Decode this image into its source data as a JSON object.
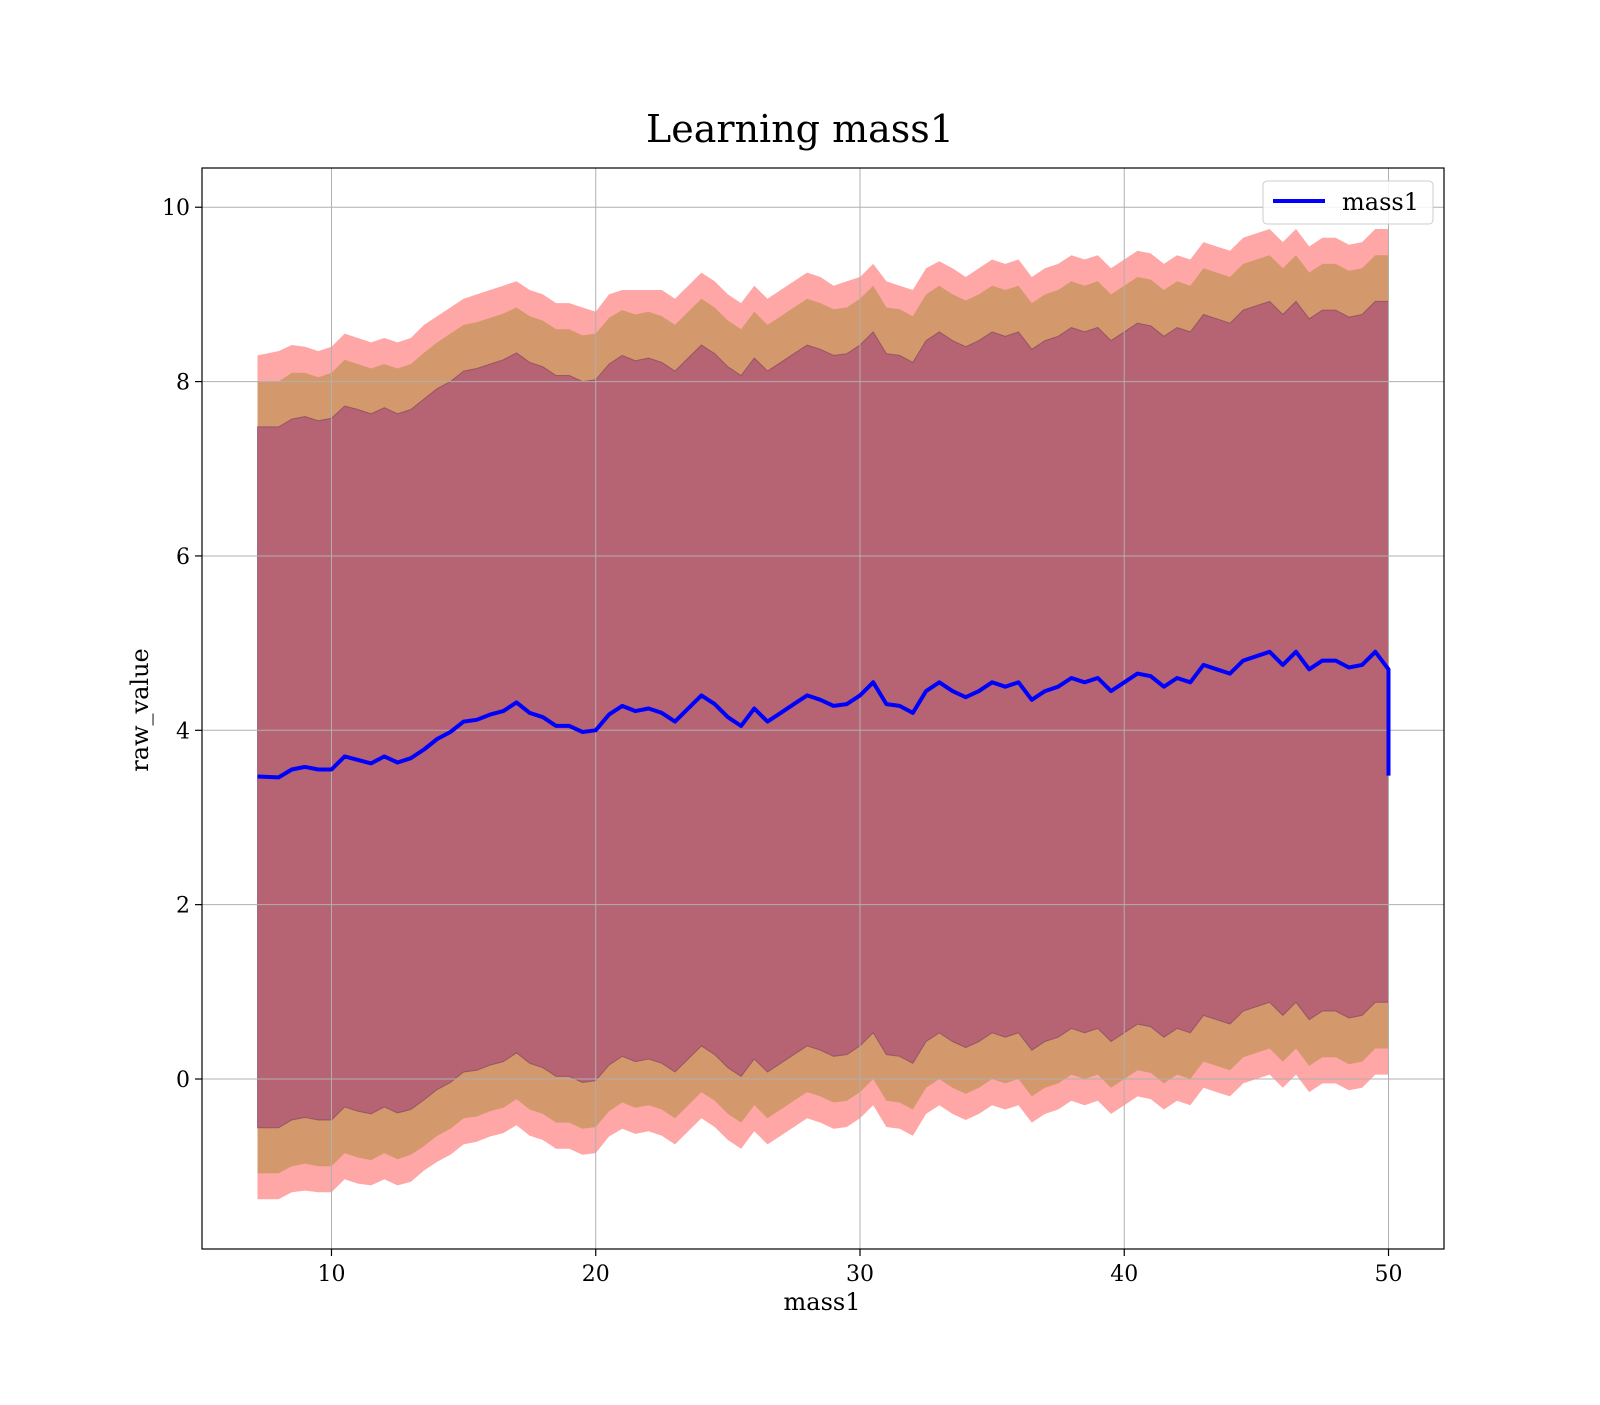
{
  "chart_data": {
    "type": "area",
    "title": "Learning mass1",
    "xlabel": "mass1",
    "ylabel": "raw_value",
    "xlim": [
      5.1,
      52.1
    ],
    "ylim": [
      -1.95,
      10.45
    ],
    "x_ticks": [
      10,
      20,
      30,
      40,
      50
    ],
    "y_ticks": [
      0,
      2,
      4,
      6,
      8,
      10
    ],
    "grid": true,
    "legend": {
      "position": "upper right",
      "entries": [
        "mass1"
      ]
    },
    "colors": {
      "line": "#0000ff",
      "band_outer": "#ff000059",
      "band_middle": "#80800059",
      "band_inner": "#80008059",
      "band_inner_edge": "#7a3d5e"
    },
    "series": [
      {
        "name": "mass1",
        "x": [
          7.2,
          8.0,
          8.5,
          9.0,
          9.5,
          10.0,
          10.5,
          11.0,
          11.5,
          12.0,
          12.5,
          13.0,
          13.5,
          14.0,
          14.5,
          15.0,
          15.5,
          16.0,
          16.5,
          17.0,
          17.5,
          18.0,
          18.5,
          19.0,
          19.5,
          20.0,
          20.5,
          21.0,
          21.5,
          22.0,
          22.5,
          23.0,
          23.5,
          24.0,
          24.5,
          25.0,
          25.5,
          26.0,
          26.5,
          27.0,
          27.5,
          28.0,
          28.5,
          29.0,
          29.5,
          30.0,
          30.5,
          31.0,
          31.5,
          32.0,
          32.5,
          33.0,
          33.5,
          34.0,
          34.5,
          35.0,
          35.5,
          36.0,
          36.5,
          37.0,
          37.5,
          38.0,
          38.5,
          39.0,
          39.5,
          40.0,
          40.5,
          41.0,
          41.5,
          42.0,
          42.5,
          43.0,
          43.5,
          44.0,
          44.5,
          45.0,
          45.5,
          46.0,
          46.5,
          47.0,
          47.5,
          48.0,
          48.5,
          49.0,
          49.5,
          50.0
        ],
        "values": [
          3.47,
          3.46,
          3.55,
          3.58,
          3.55,
          3.55,
          3.7,
          3.66,
          3.62,
          3.7,
          3.63,
          3.68,
          3.78,
          3.9,
          3.98,
          4.1,
          4.12,
          4.18,
          4.22,
          4.32,
          4.2,
          4.15,
          4.05,
          4.05,
          3.98,
          4.0,
          4.18,
          4.28,
          4.22,
          4.25,
          4.2,
          4.1,
          4.25,
          4.4,
          4.3,
          4.15,
          4.05,
          4.25,
          4.1,
          4.2,
          4.3,
          4.4,
          4.35,
          4.28,
          4.3,
          4.4,
          4.55,
          4.3,
          4.28,
          4.2,
          4.45,
          4.55,
          4.45,
          4.38,
          4.45,
          4.55,
          4.5,
          4.55,
          4.35,
          4.45,
          4.5,
          4.6,
          4.55,
          4.6,
          4.45,
          4.55,
          4.65,
          4.62,
          4.5,
          4.6,
          4.55,
          4.75,
          4.7,
          4.65,
          4.8,
          4.85,
          4.9,
          4.75,
          4.9,
          4.7,
          4.8,
          4.8,
          4.72,
          4.75,
          4.9,
          4.7
        ],
        "end_drop_to": 3.48
      }
    ],
    "bands": [
      {
        "layer": "outer",
        "upper": [
          8.3,
          8.35,
          8.42,
          8.4,
          8.35,
          8.4,
          8.55,
          8.5,
          8.45,
          8.5,
          8.45,
          8.5,
          8.65,
          8.75,
          8.85,
          8.95,
          9.0,
          9.05,
          9.1,
          9.15,
          9.05,
          9.0,
          8.9,
          8.9,
          8.85,
          8.8,
          9.0,
          9.05,
          9.05,
          9.05,
          9.05,
          8.95,
          9.1,
          9.25,
          9.15,
          9.0,
          8.9,
          9.1,
          8.95,
          9.05,
          9.15,
          9.25,
          9.2,
          9.1,
          9.15,
          9.2,
          9.35,
          9.15,
          9.1,
          9.05,
          9.3,
          9.38,
          9.3,
          9.2,
          9.3,
          9.4,
          9.35,
          9.4,
          9.2,
          9.3,
          9.35,
          9.45,
          9.4,
          9.45,
          9.3,
          9.4,
          9.5,
          9.47,
          9.35,
          9.45,
          9.4,
          9.6,
          9.55,
          9.5,
          9.65,
          9.7,
          9.75,
          9.6,
          9.75,
          9.55,
          9.65,
          9.65,
          9.57,
          9.6,
          9.75,
          9.75
        ],
        "lower": [
          -1.38,
          -1.38,
          -1.3,
          -1.28,
          -1.3,
          -1.3,
          -1.15,
          -1.2,
          -1.22,
          -1.15,
          -1.22,
          -1.18,
          -1.05,
          -0.95,
          -0.87,
          -0.75,
          -0.72,
          -0.66,
          -0.62,
          -0.53,
          -0.65,
          -0.7,
          -0.8,
          -0.8,
          -0.87,
          -0.85,
          -0.66,
          -0.57,
          -0.63,
          -0.6,
          -0.65,
          -0.75,
          -0.6,
          -0.45,
          -0.55,
          -0.7,
          -0.8,
          -0.6,
          -0.75,
          -0.65,
          -0.55,
          -0.45,
          -0.5,
          -0.57,
          -0.55,
          -0.45,
          -0.3,
          -0.55,
          -0.57,
          -0.65,
          -0.4,
          -0.3,
          -0.4,
          -0.47,
          -0.4,
          -0.3,
          -0.35,
          -0.3,
          -0.5,
          -0.4,
          -0.35,
          -0.25,
          -0.3,
          -0.25,
          -0.4,
          -0.3,
          -0.2,
          -0.23,
          -0.35,
          -0.25,
          -0.3,
          -0.1,
          -0.15,
          -0.2,
          -0.05,
          0.0,
          0.05,
          -0.1,
          0.05,
          -0.15,
          -0.05,
          -0.05,
          -0.13,
          -0.1,
          0.05,
          0.05
        ]
      },
      {
        "layer": "middle",
        "upper": [
          8.0,
          8.0,
          8.1,
          8.1,
          8.05,
          8.1,
          8.25,
          8.2,
          8.15,
          8.2,
          8.15,
          8.2,
          8.33,
          8.45,
          8.55,
          8.65,
          8.68,
          8.73,
          8.78,
          8.85,
          8.75,
          8.7,
          8.6,
          8.6,
          8.53,
          8.55,
          8.73,
          8.82,
          8.77,
          8.8,
          8.75,
          8.65,
          8.8,
          8.95,
          8.85,
          8.7,
          8.6,
          8.8,
          8.65,
          8.75,
          8.85,
          8.95,
          8.9,
          8.83,
          8.85,
          8.95,
          9.1,
          8.85,
          8.83,
          8.75,
          9.0,
          9.1,
          9.0,
          8.93,
          9.0,
          9.1,
          9.05,
          9.1,
          8.9,
          9.0,
          9.05,
          9.15,
          9.1,
          9.15,
          9.0,
          9.1,
          9.2,
          9.17,
          9.05,
          9.15,
          9.1,
          9.3,
          9.25,
          9.2,
          9.35,
          9.4,
          9.45,
          9.3,
          9.45,
          9.25,
          9.35,
          9.35,
          9.27,
          9.3,
          9.45,
          9.45
        ],
        "lower": [
          -1.08,
          -1.08,
          -1.0,
          -0.97,
          -1.0,
          -1.0,
          -0.85,
          -0.9,
          -0.93,
          -0.85,
          -0.92,
          -0.87,
          -0.77,
          -0.65,
          -0.57,
          -0.45,
          -0.43,
          -0.37,
          -0.33,
          -0.23,
          -0.35,
          -0.4,
          -0.5,
          -0.5,
          -0.57,
          -0.55,
          -0.37,
          -0.27,
          -0.33,
          -0.3,
          -0.35,
          -0.45,
          -0.3,
          -0.15,
          -0.25,
          -0.4,
          -0.5,
          -0.3,
          -0.45,
          -0.35,
          -0.25,
          -0.15,
          -0.2,
          -0.27,
          -0.25,
          -0.15,
          0.0,
          -0.25,
          -0.27,
          -0.35,
          -0.1,
          0.0,
          -0.1,
          -0.17,
          -0.1,
          0.0,
          -0.05,
          0.0,
          -0.2,
          -0.1,
          -0.05,
          0.05,
          0.0,
          0.05,
          -0.1,
          0.0,
          0.1,
          0.07,
          -0.05,
          0.05,
          0.0,
          0.2,
          0.15,
          0.1,
          0.25,
          0.3,
          0.35,
          0.2,
          0.35,
          0.15,
          0.25,
          0.25,
          0.17,
          0.2,
          0.35,
          0.35
        ]
      },
      {
        "layer": "inner",
        "upper": [
          7.48,
          7.48,
          7.57,
          7.6,
          7.55,
          7.58,
          7.72,
          7.68,
          7.63,
          7.7,
          7.63,
          7.68,
          7.8,
          7.92,
          8.0,
          8.12,
          8.15,
          8.2,
          8.25,
          8.33,
          8.22,
          8.17,
          8.07,
          8.07,
          8.0,
          8.02,
          8.2,
          8.3,
          8.24,
          8.27,
          8.22,
          8.12,
          8.27,
          8.42,
          8.32,
          8.17,
          8.07,
          8.27,
          8.12,
          8.22,
          8.32,
          8.42,
          8.37,
          8.3,
          8.32,
          8.42,
          8.57,
          8.32,
          8.3,
          8.22,
          8.47,
          8.57,
          8.47,
          8.4,
          8.47,
          8.57,
          8.52,
          8.57,
          8.37,
          8.47,
          8.52,
          8.62,
          8.57,
          8.62,
          8.47,
          8.57,
          8.67,
          8.64,
          8.52,
          8.62,
          8.57,
          8.77,
          8.72,
          8.67,
          8.82,
          8.87,
          8.92,
          8.77,
          8.92,
          8.72,
          8.82,
          8.82,
          8.74,
          8.77,
          8.92,
          8.92
        ],
        "lower": [
          -0.56,
          -0.56,
          -0.47,
          -0.44,
          -0.47,
          -0.47,
          -0.32,
          -0.37,
          -0.4,
          -0.32,
          -0.39,
          -0.35,
          -0.24,
          -0.12,
          -0.04,
          0.08,
          0.1,
          0.16,
          0.2,
          0.3,
          0.18,
          0.13,
          0.03,
          0.03,
          -0.04,
          -0.02,
          0.16,
          0.26,
          0.2,
          0.23,
          0.18,
          0.08,
          0.23,
          0.38,
          0.28,
          0.13,
          0.03,
          0.23,
          0.08,
          0.18,
          0.28,
          0.38,
          0.33,
          0.26,
          0.28,
          0.38,
          0.53,
          0.28,
          0.26,
          0.18,
          0.43,
          0.53,
          0.43,
          0.36,
          0.43,
          0.53,
          0.48,
          0.53,
          0.33,
          0.43,
          0.48,
          0.58,
          0.53,
          0.58,
          0.43,
          0.53,
          0.63,
          0.6,
          0.48,
          0.58,
          0.53,
          0.73,
          0.68,
          0.63,
          0.78,
          0.83,
          0.88,
          0.73,
          0.88,
          0.68,
          0.78,
          0.78,
          0.7,
          0.73,
          0.88,
          0.88
        ]
      }
    ]
  }
}
